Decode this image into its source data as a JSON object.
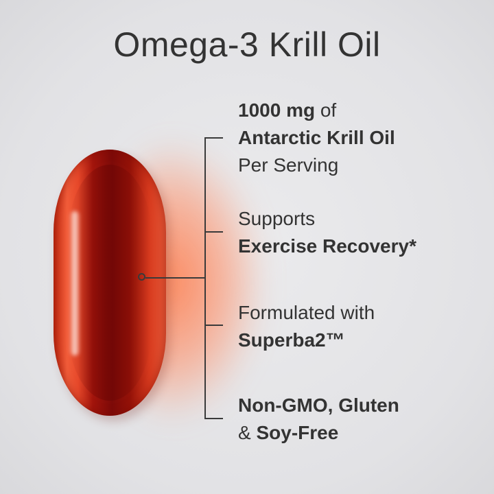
{
  "title": "Omega-3 Krill Oil",
  "accent_color": "#c22a10",
  "features": [
    {
      "lines": [
        [
          {
            "t": "1000 mg",
            "bold": true
          },
          {
            "t": " of",
            "bold": false
          }
        ],
        [
          {
            "t": "Antarctic Krill Oil",
            "bold": true
          }
        ],
        [
          {
            "t": "Per Serving",
            "bold": false
          }
        ]
      ]
    },
    {
      "lines": [
        [
          {
            "t": "Supports",
            "bold": false
          }
        ],
        [
          {
            "t": "Exercise Recovery*",
            "bold": true
          }
        ]
      ]
    },
    {
      "lines": [
        [
          {
            "t": "Formulated with",
            "bold": false
          }
        ],
        [
          {
            "t": "Superba2™",
            "bold": true
          }
        ]
      ]
    },
    {
      "lines": [
        [
          {
            "t": "Non-GMO, Gluten",
            "bold": true
          }
        ],
        [
          {
            "t": "& ",
            "bold": false
          },
          {
            "t": "Soy-Free",
            "bold": true
          }
        ]
      ]
    }
  ]
}
